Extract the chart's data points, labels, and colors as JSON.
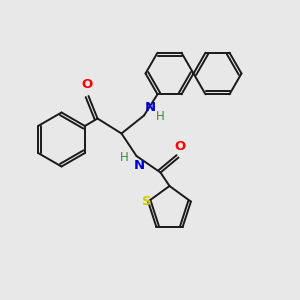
{
  "background_color": "#e8e8e8",
  "bond_color": "#1a1a1a",
  "atom_colors": {
    "O": "#ff0000",
    "N": "#0000cc",
    "S": "#cccc00",
    "H_label": "#3a8a3a"
  },
  "fig_width": 3.0,
  "fig_height": 3.0,
  "dpi": 100,
  "lw": 1.4
}
